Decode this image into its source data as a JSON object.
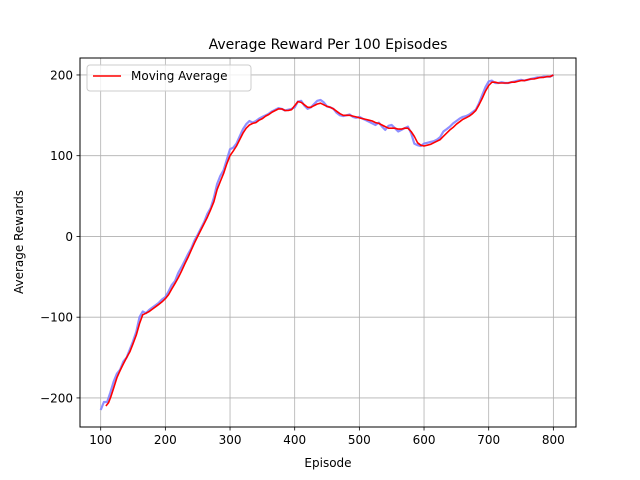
{
  "chart_data": {
    "type": "line",
    "title": "Average Reward Per 100 Episodes",
    "xlabel": "Episode",
    "ylabel": "Average Rewards",
    "xlim": [
      68,
      835
    ],
    "ylim": [
      -236,
      221
    ],
    "xticks": [
      100,
      200,
      300,
      400,
      500,
      600,
      700,
      800
    ],
    "yticks": [
      -200,
      -100,
      0,
      100,
      200
    ],
    "xtick_labels": [
      "100",
      "200",
      "300",
      "400",
      "500",
      "600",
      "700",
      "800"
    ],
    "ytick_labels": [
      "−200",
      "−100",
      "0",
      "100",
      "200"
    ],
    "grid": true,
    "legend": {
      "placement": "top-left",
      "entries": [
        "Moving Average"
      ]
    },
    "colors": {
      "raw": "#7b7bff",
      "moving_average": "#ff0000",
      "grid": "#b0b0b0"
    },
    "series": [
      {
        "style": "raw",
        "x": [
          100,
          105,
          110,
          115,
          120,
          125,
          130,
          135,
          140,
          145,
          150,
          155,
          160,
          165,
          170,
          175,
          180,
          185,
          190,
          195,
          200,
          205,
          210,
          215,
          220,
          225,
          230,
          235,
          240,
          245,
          250,
          255,
          260,
          265,
          270,
          275,
          280,
          285,
          290,
          295,
          300,
          305,
          310,
          315,
          320,
          325,
          330,
          335,
          340,
          345,
          350,
          355,
          360,
          365,
          370,
          375,
          380,
          385,
          390,
          395,
          400,
          405,
          410,
          415,
          420,
          425,
          430,
          435,
          440,
          445,
          450,
          455,
          460,
          465,
          470,
          475,
          480,
          485,
          490,
          495,
          500,
          505,
          510,
          515,
          520,
          525,
          530,
          535,
          540,
          545,
          550,
          555,
          560,
          565,
          570,
          575,
          580,
          585,
          590,
          595,
          600,
          605,
          610,
          615,
          620,
          625,
          630,
          635,
          640,
          645,
          650,
          655,
          660,
          665,
          670,
          675,
          680,
          685,
          690,
          695,
          700,
          705,
          710,
          715,
          720,
          725,
          730,
          735,
          740,
          745,
          750,
          755,
          760,
          765,
          770,
          775,
          780,
          785,
          790,
          795,
          800
        ],
        "y": [
          -215,
          -205,
          -205,
          -193,
          -180,
          -170,
          -165,
          -155,
          -150,
          -140,
          -130,
          -118,
          -100,
          -93,
          -95,
          -91,
          -88,
          -85,
          -82,
          -78,
          -75,
          -68,
          -60,
          -55,
          -45,
          -38,
          -30,
          -22,
          -15,
          -5,
          2,
          10,
          18,
          28,
          35,
          48,
          65,
          75,
          82,
          95,
          108,
          110,
          115,
          124,
          133,
          139,
          143,
          141,
          143,
          146,
          148,
          150,
          152,
          155,
          157,
          159,
          158,
          156,
          157,
          158,
          160,
          167,
          168,
          162,
          158,
          160,
          164,
          168,
          169,
          166,
          161,
          160,
          158,
          153,
          150,
          149,
          150,
          151,
          148,
          147,
          148,
          146,
          144,
          142,
          140,
          138,
          141,
          136,
          132,
          137,
          138,
          134,
          130,
          132,
          134,
          136,
          128,
          115,
          113,
          112,
          115,
          116,
          117,
          118,
          120,
          123,
          130,
          133,
          136,
          140,
          143,
          146,
          148,
          149,
          151,
          154,
          157,
          165,
          175,
          185,
          192,
          193,
          190,
          190,
          191,
          190,
          190,
          191,
          192,
          193,
          194,
          193,
          194,
          195,
          196,
          197,
          197,
          198,
          198,
          198,
          200
        ]
      },
      {
        "name": "Moving Average",
        "style": "moving_average",
        "x": [
          108,
          112,
          116,
          120,
          125,
          130,
          135,
          140,
          145,
          150,
          155,
          160,
          165,
          170,
          175,
          180,
          185,
          190,
          195,
          200,
          205,
          210,
          215,
          220,
          225,
          230,
          235,
          240,
          245,
          250,
          255,
          260,
          265,
          270,
          275,
          280,
          285,
          290,
          295,
          300,
          305,
          310,
          315,
          320,
          325,
          330,
          335,
          340,
          345,
          350,
          355,
          360,
          365,
          370,
          375,
          380,
          385,
          390,
          395,
          400,
          405,
          410,
          415,
          420,
          425,
          430,
          435,
          440,
          445,
          450,
          455,
          460,
          465,
          470,
          475,
          480,
          485,
          490,
          495,
          500,
          505,
          510,
          515,
          520,
          525,
          530,
          535,
          540,
          545,
          550,
          555,
          560,
          565,
          570,
          575,
          580,
          585,
          590,
          595,
          600,
          605,
          610,
          615,
          620,
          625,
          630,
          635,
          640,
          645,
          650,
          655,
          660,
          665,
          670,
          675,
          680,
          685,
          690,
          695,
          700,
          705,
          710,
          715,
          720,
          725,
          730,
          735,
          740,
          745,
          750,
          755,
          760,
          765,
          770,
          775,
          780,
          785,
          790,
          795,
          800
        ],
        "y": [
          -210,
          -206,
          -198,
          -188,
          -175,
          -166,
          -158,
          -150,
          -143,
          -133,
          -122,
          -108,
          -97,
          -95,
          -93,
          -90,
          -87,
          -84,
          -81,
          -77,
          -72,
          -65,
          -58,
          -51,
          -43,
          -34,
          -26,
          -17,
          -8,
          0,
          8,
          16,
          24,
          33,
          43,
          58,
          68,
          78,
          90,
          100,
          106,
          112,
          120,
          128,
          134,
          138,
          140,
          141,
          144,
          146,
          149,
          151,
          154,
          156,
          158,
          158,
          156,
          156,
          157,
          162,
          167,
          166,
          163,
          160,
          160,
          162,
          164,
          165,
          163,
          161,
          160,
          158,
          155,
          152,
          150,
          150,
          150,
          149,
          148,
          147,
          146,
          145,
          144,
          143,
          141,
          140,
          138,
          136,
          134,
          134,
          134,
          133,
          133,
          134,
          134,
          130,
          124,
          116,
          113,
          112,
          113,
          114,
          116,
          118,
          120,
          124,
          128,
          132,
          135,
          139,
          142,
          145,
          147,
          149,
          152,
          156,
          163,
          171,
          180,
          187,
          191,
          191,
          190,
          190,
          190,
          190,
          191,
          191,
          192,
          193,
          193,
          194,
          195,
          195,
          196,
          197,
          197,
          198,
          198,
          200
        ]
      }
    ]
  }
}
